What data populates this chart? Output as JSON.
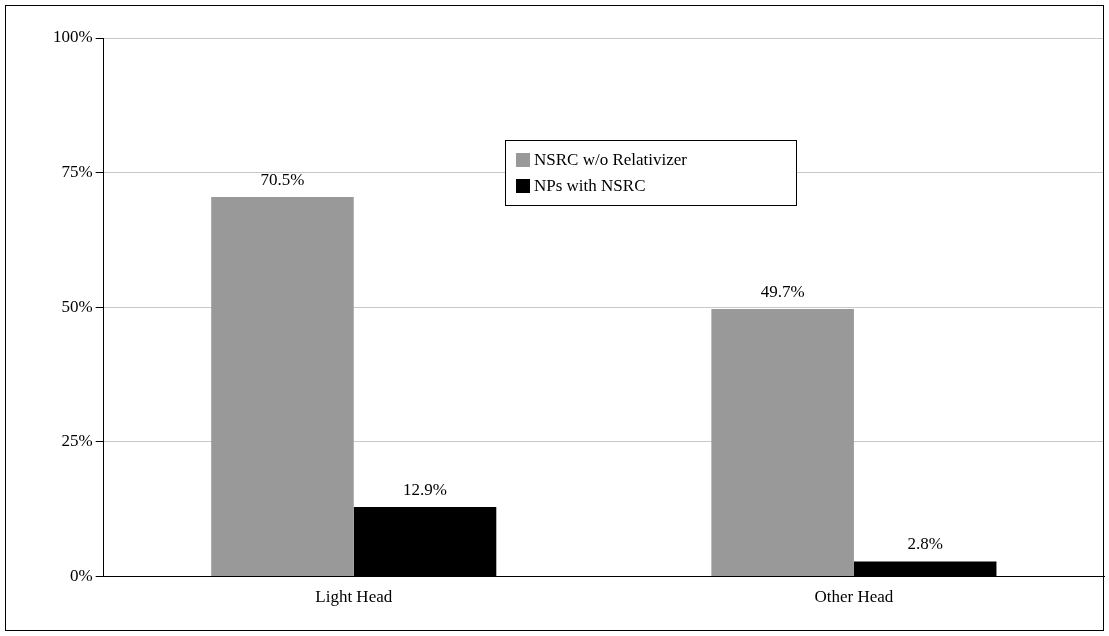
{
  "chart_data": {
    "type": "bar",
    "categories": [
      "Light Head",
      "Other Head"
    ],
    "series": [
      {
        "name": "NSRC w/o Relativizer",
        "color": "#999999",
        "values": [
          70.5,
          49.7
        ],
        "value_labels": [
          "70.5%",
          "49.7%"
        ]
      },
      {
        "name": "NPs with NSRC",
        "color": "#000000",
        "values": [
          12.9,
          2.8
        ],
        "value_labels": [
          "12.9%",
          "2.8%"
        ]
      }
    ],
    "ylim": [
      0,
      100
    ],
    "yticks": [
      {
        "value": 0,
        "label": "0%"
      },
      {
        "value": 25,
        "label": "25%"
      },
      {
        "value": 50,
        "label": "50%"
      },
      {
        "value": 75,
        "label": "75%"
      },
      {
        "value": 100,
        "label": "100%"
      }
    ],
    "grid": "y",
    "legend": "top"
  }
}
